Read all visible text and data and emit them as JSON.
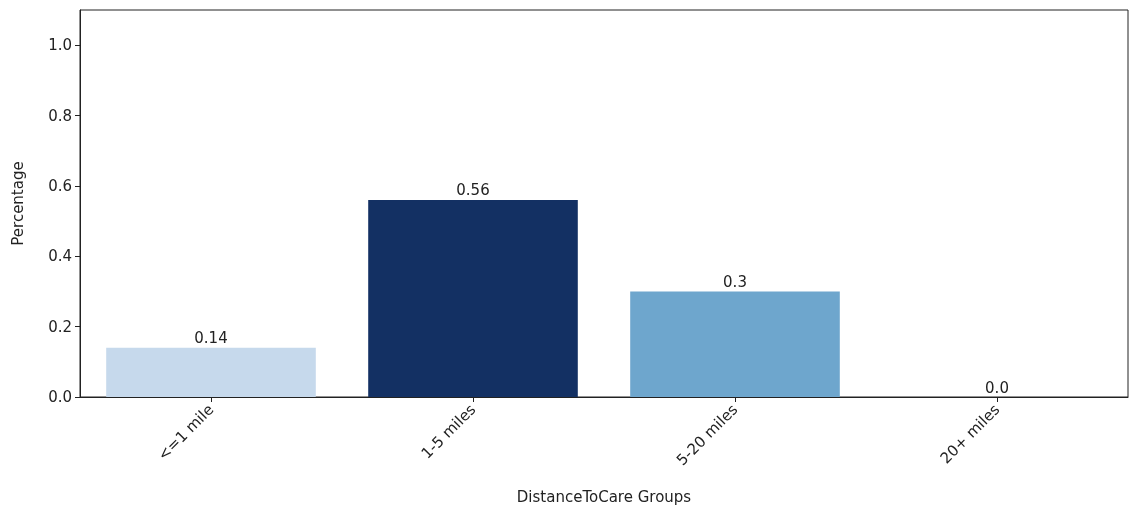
{
  "chart_data": {
    "type": "bar",
    "xlabel": "DistanceToCare Groups",
    "ylabel": "Percentage",
    "categories": [
      "<=1 mile",
      "1-5 miles",
      "5-20 miles",
      "20+ miles"
    ],
    "values": [
      0.14,
      0.56,
      0.3,
      0.0
    ],
    "colors": [
      "#c6d9ec",
      "#133063",
      "#6ea6cd",
      "#08306b"
    ],
    "value_labels": [
      "0.14",
      "0.56",
      "0.3",
      "0.0"
    ],
    "ylim": [
      0,
      1.1
    ],
    "yticks": [
      {
        "value": 0,
        "label": "0.0"
      },
      0.2,
      0.4,
      0.6,
      0.8,
      {
        "value": 1,
        "label": "1.0"
      }
    ],
    "grid": false
  }
}
